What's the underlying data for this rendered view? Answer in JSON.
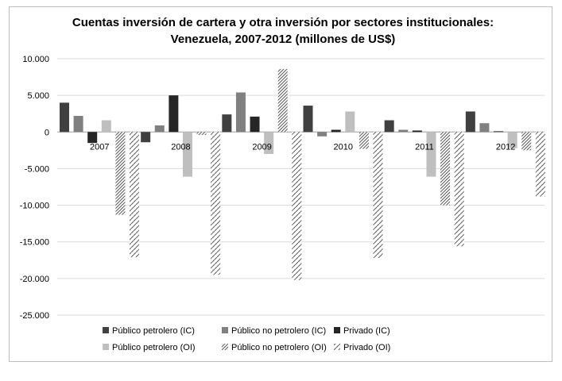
{
  "chart_data": {
    "type": "bar",
    "title_line1": "Cuentas inversión de cartera y otra inversión por sectores institucionales:",
    "title_line2": "Venezuela, 2007-2012  (millones de US$)",
    "xlabel": "",
    "ylabel": "",
    "categories": [
      "2007",
      "2008",
      "2009",
      "2010",
      "2011",
      "2012"
    ],
    "ylim": [
      -25000,
      10000
    ],
    "yticks": [
      10000,
      5000,
      0,
      -5000,
      -10000,
      -15000,
      -20000,
      -25000
    ],
    "ytick_labels": [
      "10.000",
      "5.000",
      "0",
      "-5.000",
      "-10.000",
      "-15.000",
      "-20.000",
      "-25.000"
    ],
    "grid": true,
    "legend_position": "bottom",
    "series": [
      {
        "name": "Público petrolero (IC)",
        "style": "solid-dark",
        "color": "#404040",
        "values": [
          4000,
          -1400,
          2400,
          3600,
          1600,
          2800
        ]
      },
      {
        "name": "Público no petrolero  (IC)",
        "style": "solid-mid",
        "color": "#808080",
        "values": [
          2200,
          900,
          5400,
          -600,
          300,
          1200
        ]
      },
      {
        "name": "Privado (IC)",
        "style": "solid-black",
        "color": "#262626",
        "values": [
          -1500,
          5000,
          2100,
          300,
          200,
          100
        ]
      },
      {
        "name": "Público petrolero  (OI)",
        "style": "solid-light",
        "color": "#bfbfbf",
        "values": [
          1600,
          -6100,
          -3000,
          2800,
          -6100,
          -2200
        ]
      },
      {
        "name": "Público no petrolero (OI)",
        "style": "diagonal-hatch",
        "color": "#595959",
        "values": [
          -11300,
          -400,
          8600,
          -2300,
          -10000,
          -2500
        ]
      },
      {
        "name": "Privado  (OI)",
        "style": "dashed-hatch",
        "color": "#595959",
        "values": [
          -17100,
          -19500,
          -20200,
          -17200,
          -15600,
          -8800
        ]
      }
    ]
  }
}
